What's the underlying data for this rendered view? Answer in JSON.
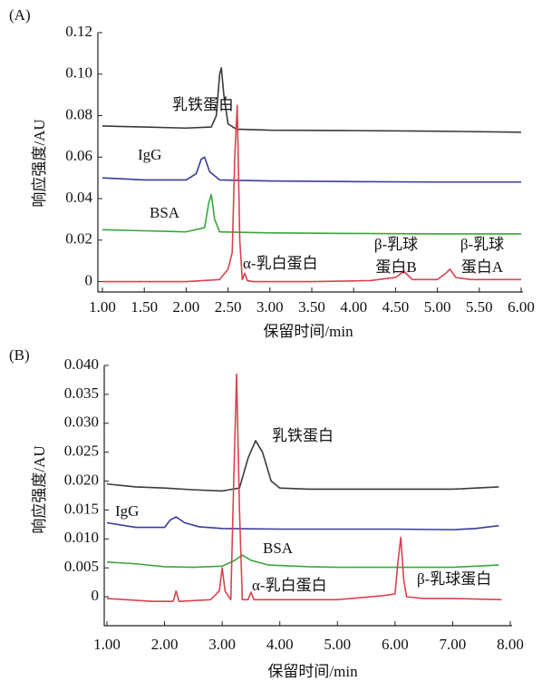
{
  "chart_data": [
    {
      "type": "line",
      "panel_label": "(A)",
      "x_label": "保留时间/min",
      "y_label": "响应强度/AU",
      "xlim": [
        1,
        6
      ],
      "ylim": [
        -0.005,
        0.12
      ],
      "xticks": [
        {
          "value": 1,
          "label": "1.00"
        },
        {
          "value": 1.5,
          "label": "1.50"
        },
        {
          "value": 2,
          "label": "2.00"
        },
        {
          "value": 2.5,
          "label": "2.50"
        },
        {
          "value": 3,
          "label": "3.00"
        },
        {
          "value": 3.5,
          "label": "3.50"
        },
        {
          "value": 4,
          "label": "4.00"
        },
        {
          "value": 4.5,
          "label": "4.50"
        },
        {
          "value": 5,
          "label": "5.00"
        },
        {
          "value": 5.5,
          "label": "5.50"
        },
        {
          "value": 6,
          "label": "6.00"
        }
      ],
      "yticks": [
        0,
        0.02,
        0.04,
        0.06,
        0.08,
        {
          "value": 0.1,
          "label": "0.10"
        },
        0.12
      ],
      "annotations": [
        "乳铁蛋白",
        "IgG",
        "BSA",
        "α-乳白蛋白",
        "β-乳球",
        "蛋白B",
        "β-乳球",
        "蛋白A"
      ],
      "series": [
        {
          "color": "#3a3a3a",
          "x": [
            1.0,
            1.5,
            2.0,
            2.3,
            2.36,
            2.4,
            2.42,
            2.45,
            2.5,
            2.6,
            3.0,
            4.0,
            5.0,
            6.0
          ],
          "values": [
            0.075,
            0.0745,
            0.074,
            0.0745,
            0.08,
            0.1,
            0.103,
            0.09,
            0.076,
            0.0735,
            0.073,
            0.0728,
            0.0725,
            0.072
          ]
        },
        {
          "color": "#3b3b9c",
          "x": [
            1.0,
            1.5,
            2.0,
            2.12,
            2.18,
            2.22,
            2.28,
            2.4,
            3.0,
            4.0,
            5.0,
            6.0
          ],
          "values": [
            0.05,
            0.049,
            0.049,
            0.052,
            0.059,
            0.06,
            0.053,
            0.049,
            0.0485,
            0.0482,
            0.048,
            0.048
          ]
        },
        {
          "color": "#3aa63a",
          "x": [
            1.0,
            1.5,
            2.0,
            2.22,
            2.27,
            2.3,
            2.34,
            2.4,
            3.0,
            4.0,
            5.0,
            6.0
          ],
          "values": [
            0.025,
            0.0245,
            0.024,
            0.026,
            0.038,
            0.042,
            0.03,
            0.024,
            0.0235,
            0.0232,
            0.023,
            0.023
          ]
        },
        {
          "color": "#d8434f",
          "x": [
            1.0,
            1.5,
            2.0,
            2.4,
            2.5,
            2.55,
            2.58,
            2.61,
            2.64,
            2.67,
            2.7,
            2.73,
            2.8,
            3.5,
            4.2,
            4.5,
            4.6,
            4.7,
            5.0,
            5.1,
            5.15,
            5.22,
            5.4,
            6.0
          ],
          "values": [
            0,
            0,
            0,
            0.001,
            0.006,
            0.014,
            0.06,
            0.085,
            0.02,
            0.001,
            0.004,
            0.0005,
            0,
            0,
            0.0005,
            0.002,
            0.005,
            0.001,
            0.001,
            0.004,
            0.006,
            0.002,
            0.001,
            0.001
          ]
        }
      ]
    },
    {
      "type": "line",
      "panel_label": "(B)",
      "x_label": "保留时间/min",
      "y_label": "响应强度/AU",
      "xlim": [
        1,
        8
      ],
      "ylim": [
        -0.005,
        0.04
      ],
      "xticks": [
        {
          "value": 1,
          "label": "1.00"
        },
        {
          "value": 2,
          "label": "2.00"
        },
        {
          "value": 3,
          "label": "3.00"
        },
        {
          "value": 4,
          "label": "4.00"
        },
        {
          "value": 5,
          "label": "5.00"
        },
        {
          "value": 6,
          "label": "6.00"
        },
        {
          "value": 7,
          "label": "7.00"
        },
        {
          "value": 8,
          "label": "8.00"
        }
      ],
      "yticks": [
        0,
        0.005,
        {
          "value": 0.01,
          "label": "0.010"
        },
        0.015,
        {
          "value": 0.02,
          "label": "0.020"
        },
        0.025,
        {
          "value": 0.03,
          "label": "0.030"
        },
        0.035,
        {
          "value": 0.04,
          "label": "0.040"
        }
      ],
      "annotations": [
        "乳铁蛋白",
        "IgG",
        "BSA",
        "α-乳白蛋白",
        "β-乳球蛋白"
      ],
      "series": [
        {
          "color": "#3a3a3a",
          "x": [
            1,
            1.5,
            2,
            2.5,
            3,
            3.3,
            3.45,
            3.58,
            3.7,
            3.85,
            4.0,
            4.5,
            5,
            6,
            7,
            7.8
          ],
          "values": [
            0.0195,
            0.019,
            0.0188,
            0.0185,
            0.0183,
            0.0188,
            0.024,
            0.027,
            0.025,
            0.02,
            0.0188,
            0.0186,
            0.0186,
            0.0186,
            0.0186,
            0.019
          ]
        },
        {
          "color": "#3b3b9c",
          "x": [
            1,
            1.5,
            2,
            2.1,
            2.2,
            2.35,
            2.6,
            3,
            4,
            5,
            6,
            7,
            7.4,
            7.8
          ],
          "values": [
            0.0128,
            0.012,
            0.012,
            0.0133,
            0.0138,
            0.0128,
            0.0121,
            0.0118,
            0.0117,
            0.0117,
            0.0117,
            0.0116,
            0.0118,
            0.0123
          ]
        },
        {
          "color": "#3aa63a",
          "x": [
            1,
            1.5,
            2,
            2.5,
            3,
            3.2,
            3.35,
            3.5,
            3.8,
            4.5,
            5,
            6,
            7,
            7.8
          ],
          "values": [
            0.006,
            0.0057,
            0.0052,
            0.0051,
            0.0053,
            0.0062,
            0.0072,
            0.0063,
            0.0055,
            0.0052,
            0.0051,
            0.0051,
            0.0051,
            0.0055
          ]
        },
        {
          "color": "#d8434f",
          "x": [
            1,
            1.8,
            2.15,
            2.2,
            2.25,
            2.8,
            2.95,
            3.0,
            3.05,
            3.15,
            3.2,
            3.25,
            3.3,
            3.35,
            3.45,
            3.5,
            3.55,
            4,
            5,
            5.8,
            6.0,
            6.05,
            6.1,
            6.15,
            6.2,
            6.5,
            7,
            7.85
          ],
          "values": [
            -0.0003,
            -0.0008,
            -0.0008,
            0.001,
            -0.0008,
            -0.0005,
            0.001,
            0.005,
            0.001,
            -0.0005,
            0.02,
            0.0385,
            0.015,
            -0.0005,
            -0.0005,
            0.0008,
            -0.0005,
            -0.0005,
            -0.0005,
            0.0002,
            0.0005,
            0.006,
            0.0103,
            0.003,
            0,
            -0.0003,
            -0.0003,
            -0.0005
          ]
        }
      ]
    }
  ]
}
